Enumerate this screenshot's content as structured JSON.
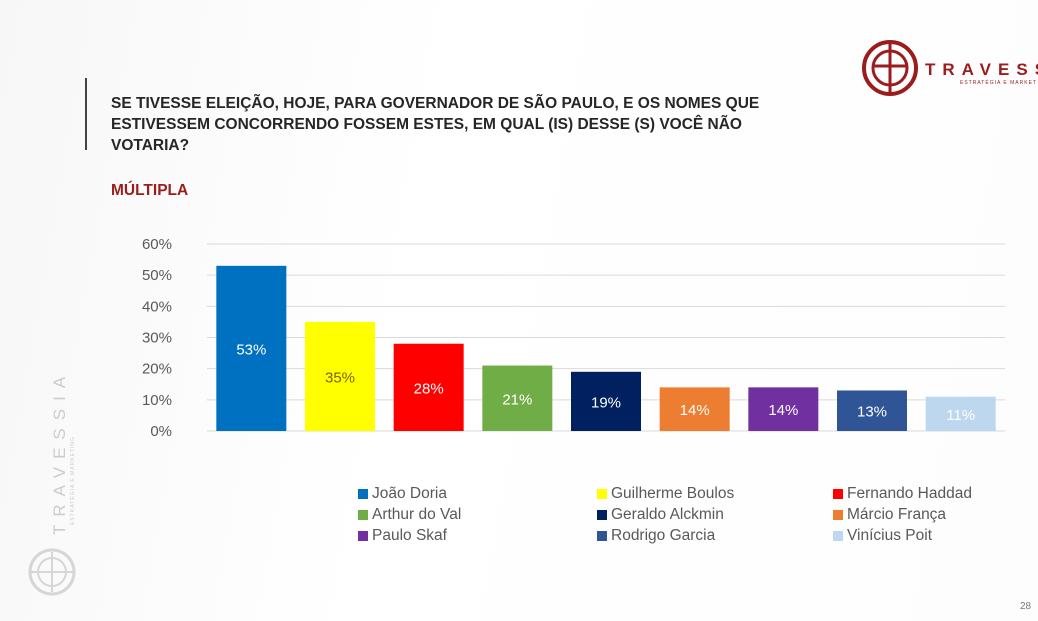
{
  "title": "SE TIVESSE ELEIÇÃO, HOJE, PARA GOVERNADOR DE SÃO PAULO, E OS NOMES QUE ESTIVESSEM CONCORRENDO FOSSEM ESTES, EM QUAL (IS) DESSE (S) VOCÊ NÃO VOTARIA?",
  "subtitle": "MÚLTIPLA",
  "logo": {
    "name": "TRAVESS",
    "tagline": "ESTRATÉGIA E MARKET"
  },
  "watermark": {
    "name": "TRAVESSIA",
    "tagline": "ESTRATÉGIA E MARKETING"
  },
  "page_number": "28",
  "colors": {
    "brand": "#9b1c1c"
  },
  "chart_data": {
    "type": "bar",
    "categories": [
      "João Doria",
      "Guilherme Boulos",
      "Fernando Haddad",
      "Arthur do Val",
      "Geraldo Alckmin",
      "Márcio França",
      "Paulo Skaf",
      "Rodrigo Garcia",
      "Vinícius Poit"
    ],
    "values": [
      53,
      35,
      28,
      21,
      19,
      14,
      14,
      13,
      11
    ],
    "data_labels": [
      "53%",
      "35%",
      "28%",
      "21%",
      "19%",
      "14%",
      "14%",
      "13%",
      "11%"
    ],
    "colors": [
      "#0070c0",
      "#ffff00",
      "#ff0000",
      "#70ad47",
      "#002060",
      "#ed7d31",
      "#7030a0",
      "#2f5597",
      "#bdd7ee"
    ],
    "label_colors": [
      "#ffffff",
      "#7f6000",
      "#ffffff",
      "#ffffff",
      "#ffffff",
      "#ffffff",
      "#ffffff",
      "#ffffff",
      "#ffffff"
    ],
    "ylim": [
      0,
      60
    ],
    "yticks": [
      "0%",
      "10%",
      "20%",
      "30%",
      "40%",
      "50%",
      "60%"
    ],
    "grid": true,
    "legend_position": "bottom",
    "xlabel": "",
    "ylabel": ""
  }
}
